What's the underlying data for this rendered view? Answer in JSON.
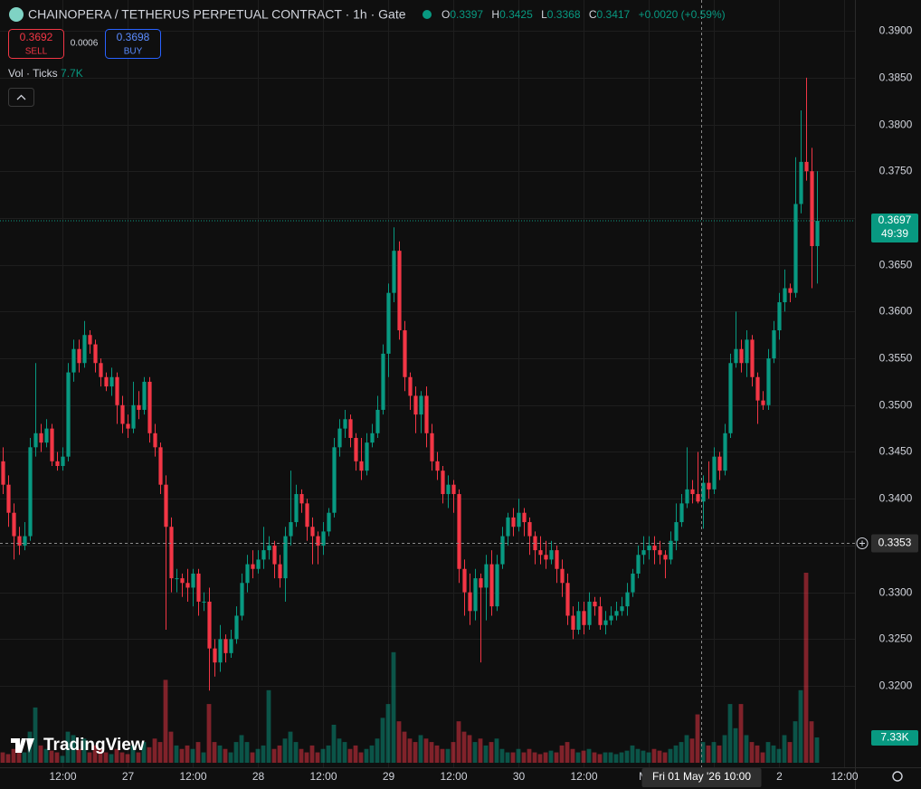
{
  "header": {
    "symbol": "CHAINOPERA / TETHERUS PERPETUAL CONTRACT · 1h · Gate",
    "ohlc": [
      {
        "key": "O",
        "value": "0.3397"
      },
      {
        "key": "H",
        "value": "0.3425"
      },
      {
        "key": "L",
        "value": "0.3368"
      },
      {
        "key": "C",
        "value": "0.3417"
      }
    ],
    "change": "+0.0020 (+0.59%)",
    "sell": {
      "price": "0.3692",
      "label": "SELL"
    },
    "spread": "0.0006",
    "buy": {
      "price": "0.3698",
      "label": "BUY"
    },
    "indicator": {
      "name": "Vol · Ticks",
      "value": "7.7K"
    },
    "logo": "TradingView"
  },
  "chart_data": {
    "type": "candlestick",
    "up_color": "#089981",
    "down_color": "#f23645",
    "xlim": [
      -0.5,
      157
    ],
    "xticks": [
      {
        "value": 11,
        "label": "12:00"
      },
      {
        "value": 23,
        "label": "27"
      },
      {
        "value": 35,
        "label": "12:00"
      },
      {
        "value": 47,
        "label": "28"
      },
      {
        "value": 59,
        "label": "12:00"
      },
      {
        "value": 71,
        "label": "29"
      },
      {
        "value": 83,
        "label": "12:00"
      },
      {
        "value": 95,
        "label": "30"
      },
      {
        "value": 107,
        "label": "12:00"
      },
      {
        "value": 119,
        "label": "May"
      },
      {
        "value": 131,
        "label": "12:00"
      },
      {
        "value": 143,
        "label": "2"
      },
      {
        "value": 155,
        "label": "12:00"
      }
    ],
    "ylim": [
      0.3113,
      0.3933
    ],
    "yticks": [
      {
        "value": 0.39,
        "label": "0.3900"
      },
      {
        "value": 0.385,
        "label": "0.3850"
      },
      {
        "value": 0.38,
        "label": "0.3800"
      },
      {
        "value": 0.375,
        "label": "0.3750"
      },
      {
        "value": 0.37,
        "label": "0.3700"
      },
      {
        "value": 0.365,
        "label": "0.3650"
      },
      {
        "value": 0.36,
        "label": "0.3600"
      },
      {
        "value": 0.355,
        "label": "0.3550"
      },
      {
        "value": 0.35,
        "label": "0.3500"
      },
      {
        "value": 0.345,
        "label": "0.3450"
      },
      {
        "value": 0.34,
        "label": "0.3400"
      },
      {
        "value": 0.335,
        "label": "0.3350"
      },
      {
        "value": 0.33,
        "label": "0.3300"
      },
      {
        "value": 0.325,
        "label": "0.3250"
      },
      {
        "value": 0.32,
        "label": "0.3200"
      }
    ],
    "open": [
      0.344,
      0.3415,
      0.3385,
      0.336,
      0.335,
      0.336,
      0.3455,
      0.347,
      0.346,
      0.3475,
      0.344,
      0.3435,
      0.3445,
      0.3535,
      0.356,
      0.3545,
      0.3575,
      0.3565,
      0.3545,
      0.353,
      0.352,
      0.353,
      0.35,
      0.348,
      0.3475,
      0.35,
      0.3495,
      0.3525,
      0.347,
      0.3455,
      0.3415,
      0.337,
      0.3315,
      0.3315,
      0.331,
      0.3305,
      0.332,
      0.329,
      0.329,
      0.324,
      0.3225,
      0.325,
      0.3235,
      0.325,
      0.3275,
      0.331,
      0.333,
      0.3325,
      0.3335,
      0.3345,
      0.335,
      0.333,
      0.3315,
      0.336,
      0.3375,
      0.3405,
      0.3395,
      0.337,
      0.336,
      0.335,
      0.3365,
      0.3385,
      0.3455,
      0.3475,
      0.3485,
      0.3465,
      0.344,
      0.343,
      0.346,
      0.347,
      0.3495,
      0.3555,
      0.362,
      0.3665,
      0.358,
      0.353,
      0.351,
      0.349,
      0.351,
      0.347,
      0.344,
      0.343,
      0.3405,
      0.3415,
      0.3405,
      0.3325,
      0.33,
      0.328,
      0.3315,
      0.3305,
      0.333,
      0.3285,
      0.333,
      0.336,
      0.338,
      0.337,
      0.3385,
      0.3375,
      0.336,
      0.3345,
      0.334,
      0.3335,
      0.3345,
      0.3325,
      0.331,
      0.3275,
      0.326,
      0.328,
      0.3265,
      0.329,
      0.3285,
      0.3265,
      0.327,
      0.3275,
      0.328,
      0.3285,
      0.33,
      0.332,
      0.334,
      0.3345,
      0.335,
      0.3345,
      0.334,
      0.3335,
      0.3355,
      0.3375,
      0.3395,
      0.341,
      0.3405,
      0.3397,
      0.3417,
      0.341,
      0.3445,
      0.343,
      0.347,
      0.3545,
      0.356,
      0.3545,
      0.357,
      0.353,
      0.3505,
      0.35,
      0.355,
      0.358,
      0.361,
      0.3625,
      0.362,
      0.3715,
      0.376,
      0.375,
      0.367
    ],
    "high": [
      0.3455,
      0.3425,
      0.3395,
      0.337,
      0.3375,
      0.3465,
      0.3545,
      0.348,
      0.3485,
      0.348,
      0.345,
      0.3455,
      0.3545,
      0.357,
      0.357,
      0.359,
      0.358,
      0.357,
      0.355,
      0.3535,
      0.354,
      0.3535,
      0.351,
      0.349,
      0.3525,
      0.3515,
      0.353,
      0.353,
      0.348,
      0.346,
      0.3425,
      0.338,
      0.3325,
      0.332,
      0.3325,
      0.3325,
      0.3325,
      0.33,
      0.3305,
      0.325,
      0.3265,
      0.3255,
      0.326,
      0.3285,
      0.332,
      0.334,
      0.3345,
      0.3345,
      0.337,
      0.336,
      0.3355,
      0.334,
      0.337,
      0.343,
      0.3415,
      0.341,
      0.34,
      0.338,
      0.3365,
      0.3375,
      0.339,
      0.3465,
      0.3485,
      0.3495,
      0.349,
      0.347,
      0.3465,
      0.347,
      0.348,
      0.351,
      0.3565,
      0.363,
      0.369,
      0.3675,
      0.359,
      0.3535,
      0.352,
      0.3515,
      0.352,
      0.348,
      0.345,
      0.3435,
      0.3425,
      0.342,
      0.341,
      0.3335,
      0.332,
      0.3325,
      0.332,
      0.334,
      0.3345,
      0.334,
      0.337,
      0.3385,
      0.339,
      0.34,
      0.339,
      0.338,
      0.3365,
      0.336,
      0.3355,
      0.3355,
      0.335,
      0.3335,
      0.332,
      0.3285,
      0.329,
      0.329,
      0.33,
      0.3295,
      0.3295,
      0.328,
      0.3285,
      0.329,
      0.3295,
      0.331,
      0.3325,
      0.335,
      0.336,
      0.336,
      0.336,
      0.3355,
      0.3345,
      0.3365,
      0.3395,
      0.3405,
      0.3455,
      0.342,
      0.345,
      0.3425,
      0.344,
      0.3455,
      0.345,
      0.348,
      0.3555,
      0.36,
      0.357,
      0.358,
      0.3575,
      0.3535,
      0.3515,
      0.356,
      0.359,
      0.362,
      0.3645,
      0.363,
      0.3765,
      0.3815,
      0.385,
      0.3775,
      0.375
    ],
    "low": [
      0.3405,
      0.337,
      0.3335,
      0.334,
      0.3345,
      0.3355,
      0.3445,
      0.345,
      0.3455,
      0.3435,
      0.343,
      0.343,
      0.344,
      0.3525,
      0.3535,
      0.354,
      0.3555,
      0.3535,
      0.352,
      0.3515,
      0.351,
      0.348,
      0.347,
      0.3465,
      0.347,
      0.3485,
      0.349,
      0.346,
      0.3445,
      0.3405,
      0.326,
      0.33,
      0.33,
      0.3295,
      0.329,
      0.3285,
      0.3275,
      0.328,
      0.3195,
      0.321,
      0.3215,
      0.3225,
      0.323,
      0.3245,
      0.327,
      0.33,
      0.3315,
      0.332,
      0.3325,
      0.3335,
      0.3315,
      0.3305,
      0.329,
      0.335,
      0.337,
      0.3385,
      0.3355,
      0.333,
      0.333,
      0.334,
      0.336,
      0.338,
      0.3445,
      0.3465,
      0.3455,
      0.343,
      0.342,
      0.3425,
      0.3455,
      0.3465,
      0.349,
      0.353,
      0.361,
      0.357,
      0.3515,
      0.3495,
      0.347,
      0.347,
      0.3455,
      0.343,
      0.342,
      0.3395,
      0.339,
      0.3385,
      0.331,
      0.3275,
      0.3265,
      0.327,
      0.3225,
      0.327,
      0.3275,
      0.328,
      0.3325,
      0.335,
      0.336,
      0.3365,
      0.336,
      0.334,
      0.333,
      0.333,
      0.3325,
      0.333,
      0.331,
      0.3295,
      0.3265,
      0.325,
      0.3255,
      0.3255,
      0.326,
      0.3275,
      0.326,
      0.3255,
      0.3265,
      0.327,
      0.3275,
      0.3275,
      0.3295,
      0.3315,
      0.333,
      0.3335,
      0.333,
      0.333,
      0.3315,
      0.333,
      0.3345,
      0.337,
      0.339,
      0.3395,
      0.3395,
      0.3368,
      0.34,
      0.3405,
      0.342,
      0.3425,
      0.3465,
      0.354,
      0.3535,
      0.353,
      0.352,
      0.348,
      0.3495,
      0.3495,
      0.3545,
      0.357,
      0.36,
      0.361,
      0.3615,
      0.3705,
      0.374,
      0.3625,
      0.363
    ],
    "close": [
      0.3415,
      0.3385,
      0.336,
      0.335,
      0.336,
      0.3455,
      0.347,
      0.346,
      0.3475,
      0.344,
      0.3435,
      0.3445,
      0.3535,
      0.356,
      0.3545,
      0.3575,
      0.3565,
      0.3545,
      0.353,
      0.352,
      0.353,
      0.35,
      0.348,
      0.3475,
      0.35,
      0.3495,
      0.3525,
      0.347,
      0.3455,
      0.3415,
      0.337,
      0.3315,
      0.3315,
      0.331,
      0.3305,
      0.332,
      0.329,
      0.329,
      0.324,
      0.3225,
      0.325,
      0.3235,
      0.325,
      0.3275,
      0.331,
      0.333,
      0.3325,
      0.3335,
      0.3345,
      0.335,
      0.333,
      0.3315,
      0.336,
      0.3375,
      0.3405,
      0.3395,
      0.337,
      0.336,
      0.335,
      0.3365,
      0.3385,
      0.3455,
      0.3475,
      0.3485,
      0.3465,
      0.344,
      0.343,
      0.346,
      0.347,
      0.3495,
      0.3555,
      0.362,
      0.3665,
      0.358,
      0.353,
      0.351,
      0.349,
      0.351,
      0.347,
      0.344,
      0.343,
      0.3405,
      0.3415,
      0.3405,
      0.3325,
      0.33,
      0.328,
      0.3315,
      0.3305,
      0.333,
      0.3285,
      0.333,
      0.336,
      0.338,
      0.337,
      0.3385,
      0.3375,
      0.336,
      0.3345,
      0.334,
      0.3335,
      0.3345,
      0.3325,
      0.331,
      0.3275,
      0.326,
      0.328,
      0.3265,
      0.329,
      0.3285,
      0.3265,
      0.327,
      0.3275,
      0.328,
      0.3285,
      0.33,
      0.332,
      0.334,
      0.3345,
      0.335,
      0.3345,
      0.334,
      0.3335,
      0.3355,
      0.3375,
      0.3395,
      0.341,
      0.3405,
      0.3397,
      0.3417,
      0.341,
      0.3445,
      0.343,
      0.347,
      0.3545,
      0.356,
      0.3545,
      0.357,
      0.353,
      0.3505,
      0.35,
      0.355,
      0.358,
      0.361,
      0.3625,
      0.362,
      0.3715,
      0.376,
      0.375,
      0.367,
      0.3697
    ],
    "volume": [
      3000,
      2500,
      4000,
      5000,
      3000,
      9000,
      16000,
      5000,
      4000,
      3500,
      3000,
      2000,
      9000,
      8000,
      4000,
      7000,
      3000,
      5000,
      4000,
      3000,
      2500,
      4000,
      3000,
      2500,
      5000,
      3000,
      6000,
      4500,
      7000,
      6000,
      24000,
      9000,
      5000,
      4000,
      5000,
      4000,
      6000,
      3000,
      17000,
      6000,
      5000,
      4000,
      3000,
      6000,
      8000,
      6000,
      3000,
      4000,
      5000,
      21000,
      4000,
      5000,
      7000,
      9000,
      6000,
      4000,
      3000,
      5000,
      3000,
      4000,
      5000,
      11000,
      7000,
      6000,
      4000,
      5000,
      3000,
      4000,
      5000,
      7000,
      13000,
      17000,
      32000,
      12000,
      9000,
      7000,
      6000,
      8000,
      7000,
      6000,
      5000,
      4000,
      4000,
      6000,
      12000,
      9000,
      8000,
      6000,
      7000,
      5000,
      6000,
      7000,
      4000,
      3000,
      3000,
      4000,
      3000,
      4000,
      3000,
      2500,
      3000,
      3500,
      3000,
      5000,
      6000,
      4000,
      3000,
      3500,
      4000,
      3000,
      2500,
      3000,
      3000,
      2500,
      3000,
      3500,
      5000,
      4000,
      3500,
      3000,
      4000,
      3500,
      3000,
      4000,
      5000,
      6000,
      8000,
      7000,
      14000,
      6000,
      5000,
      6000,
      5000,
      8000,
      17000,
      10000,
      17000,
      8000,
      6000,
      5000,
      3000,
      6000,
      5000,
      4000,
      8000,
      6000,
      12000,
      21000,
      55000,
      12000,
      7330
    ],
    "volume_label": "7.33K",
    "last_price": {
      "value": 0.3697,
      "label": "0.3697",
      "countdown": "49:39"
    },
    "crosshair": {
      "x": 129,
      "x_label": "Fri 01 May '26 10:00",
      "y": 0.3353,
      "y_label": "0.3353"
    }
  }
}
